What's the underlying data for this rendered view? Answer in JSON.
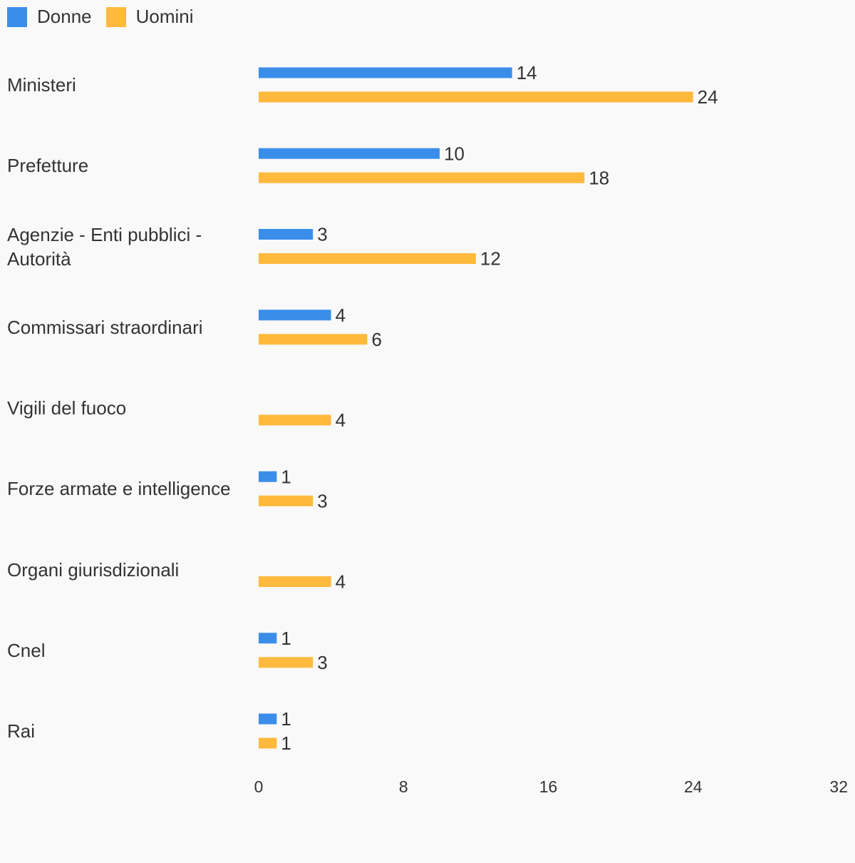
{
  "chart_data": {
    "type": "bar",
    "orientation": "horizontal",
    "title": "",
    "xlabel": "",
    "ylabel": "",
    "xlim": [
      0,
      32
    ],
    "xticks": [
      "0",
      "8",
      "16",
      "24",
      "32"
    ],
    "grid": false,
    "legend_position": "top-left",
    "categories": [
      "Ministeri",
      "Prefetture",
      "Agenzie - Enti pubblici - Autorità",
      "Commissari straordinari",
      "Vigili del fuoco",
      "Forze armate e intelligence",
      "Organi giurisdizionali",
      "Cnel",
      "Rai"
    ],
    "series": [
      {
        "name": "Donne",
        "color": "#3a8eea",
        "values": [
          14,
          10,
          3,
          4,
          null,
          1,
          null,
          1,
          1
        ]
      },
      {
        "name": "Uomini",
        "color": "#ffb93c",
        "values": [
          24,
          18,
          12,
          6,
          4,
          3,
          4,
          3,
          1
        ]
      }
    ]
  }
}
